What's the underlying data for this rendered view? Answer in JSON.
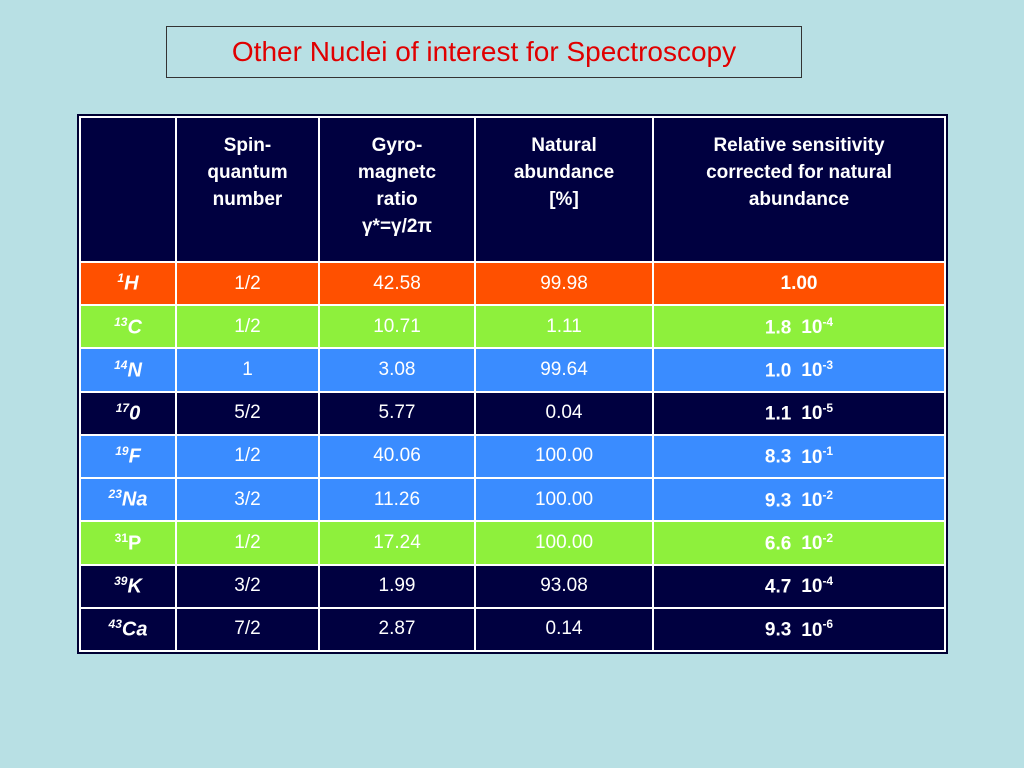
{
  "title": "Other Nuclei of interest for Spectroscopy",
  "table": {
    "header": [
      "",
      "Spin-\nquantum\nnumber",
      "Gyro-\nmagnetc\nratio\nγ*=γ/2π",
      "Natural\nabundance\n[%]",
      "Relative sensitivity\ncorrected for natural\nabundance"
    ],
    "rows": [
      {
        "mass": "1",
        "symbol": "H",
        "spin": "1/2",
        "gamma": "42.58",
        "abundance": "99.98",
        "sensitivity": "1.00",
        "color": "#ff5000"
      },
      {
        "mass": "13",
        "symbol": "C",
        "spin": "1/2",
        "gamma": "10.71",
        "abundance": "1.11",
        "sensitivity": "1.8",
        "base": "10",
        "exponent": "-4",
        "color": "#8ef03c"
      },
      {
        "mass": "14",
        "symbol": "N",
        "spin": "1",
        "gamma": "3.08",
        "abundance": "99.64",
        "sensitivity": "1.0",
        "base": "10",
        "exponent": "-3",
        "color": "#3a8cff"
      },
      {
        "mass": "17",
        "symbol": "0",
        "spin": "5/2",
        "gamma": "5.77",
        "abundance": "0.04",
        "sensitivity": "1.1",
        "base": "10",
        "exponent": "-5",
        "color": "#000040"
      },
      {
        "mass": "19",
        "symbol": "F",
        "spin": "1/2",
        "gamma": "40.06",
        "abundance": "100.00",
        "sensitivity": "8.3",
        "base": "10",
        "exponent": "-1",
        "color": "#3a8cff"
      },
      {
        "mass": "23",
        "symbol": "Na",
        "spin": "3/2",
        "gamma": "11.26",
        "abundance": "100.00",
        "sensitivity": "9.3",
        "base": "10",
        "exponent": "-2",
        "color": "#3a8cff"
      },
      {
        "mass": "31",
        "symbol": "P",
        "spin": "1/2",
        "gamma": "17.24",
        "abundance": "100.00",
        "sensitivity": "6.6",
        "base": "10",
        "exponent": "-2",
        "color": "#8ef03c"
      },
      {
        "mass": "39",
        "symbol": "K",
        "spin": "3/2",
        "gamma": "1.99",
        "abundance": "93.08",
        "sensitivity": "4.7",
        "base": "10",
        "exponent": "-4",
        "color": "#000040"
      },
      {
        "mass": "43",
        "symbol": "Ca",
        "spin": "7/2",
        "gamma": "2.87",
        "abundance": "0.14",
        "sensitivity": "9.3",
        "base": "10",
        "exponent": "-6",
        "color": "#000040"
      }
    ]
  }
}
